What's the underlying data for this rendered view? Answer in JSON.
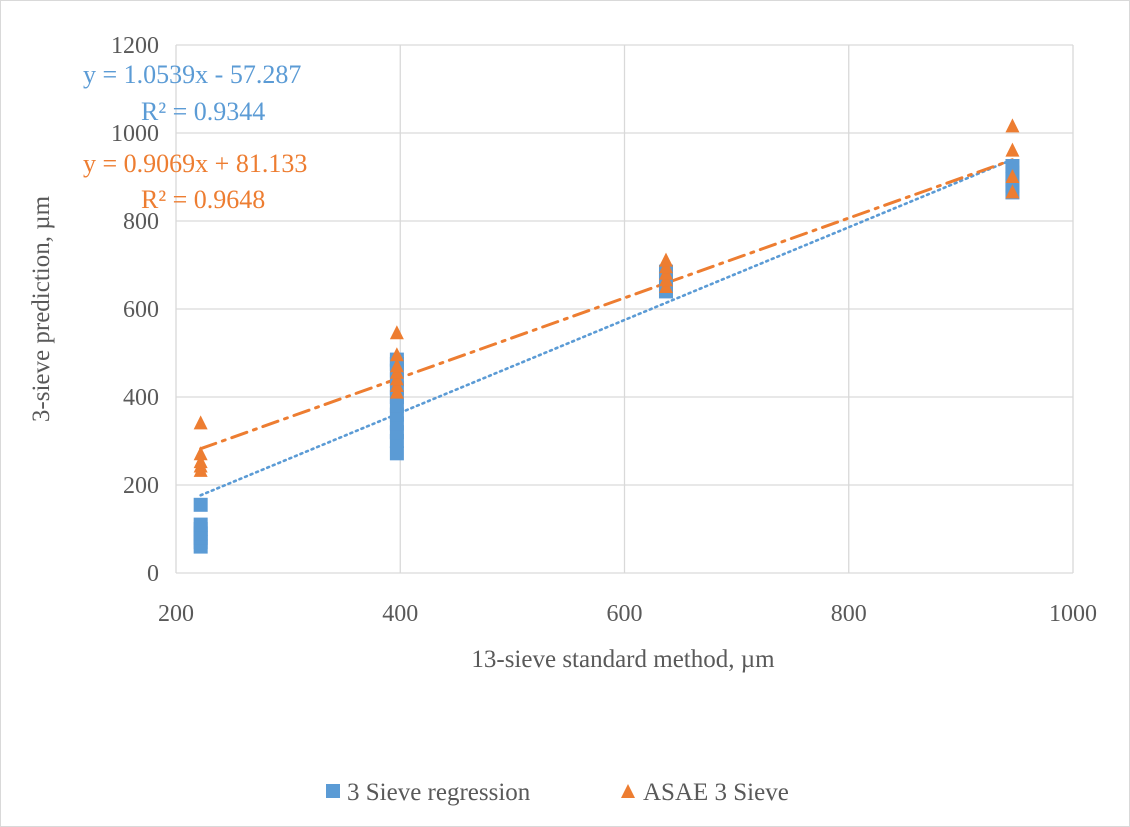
{
  "chart_data": {
    "type": "scatter",
    "title": "",
    "xlabel": "13-sieve standard method, µm",
    "ylabel": "3-sieve prediction, µm",
    "xlim": [
      200,
      1000
    ],
    "ylim": [
      0,
      1200
    ],
    "xticks": [
      "200",
      "400",
      "600",
      "800",
      "1000"
    ],
    "yticks": [
      "0",
      "200",
      "400",
      "600",
      "800",
      "1000",
      "1200"
    ],
    "grid": true,
    "legend_position": "bottom",
    "series": [
      {
        "name": "3 Sieve regression",
        "marker": "square",
        "color": "#5b9bd5",
        "points": [
          [
            222,
            60
          ],
          [
            222,
            70
          ],
          [
            222,
            80
          ],
          [
            222,
            90
          ],
          [
            222,
            100
          ],
          [
            222,
            110
          ],
          [
            222,
            155
          ],
          [
            397,
            272
          ],
          [
            397,
            300
          ],
          [
            397,
            320
          ],
          [
            397,
            340
          ],
          [
            397,
            360
          ],
          [
            397,
            380
          ],
          [
            397,
            400
          ],
          [
            397,
            420
          ],
          [
            397,
            440
          ],
          [
            397,
            460
          ],
          [
            397,
            475
          ],
          [
            397,
            485
          ],
          [
            637,
            640
          ],
          [
            637,
            655
          ],
          [
            637,
            670
          ],
          [
            637,
            685
          ],
          [
            946,
            865
          ],
          [
            946,
            880
          ],
          [
            946,
            895
          ],
          [
            946,
            910
          ],
          [
            946,
            925
          ]
        ],
        "trendline": {
          "label": "y = 1.0539x - 57.287",
          "r2": "R² = 0.9344",
          "slope": 1.0539,
          "intercept": -57.287,
          "style": "dotted"
        }
      },
      {
        "name": "ASAE 3 Sieve",
        "marker": "triangle",
        "color": "#ed7d31",
        "points": [
          [
            222,
            232
          ],
          [
            222,
            242
          ],
          [
            222,
            252
          ],
          [
            222,
            270
          ],
          [
            222,
            340
          ],
          [
            397,
            410
          ],
          [
            397,
            425
          ],
          [
            397,
            440
          ],
          [
            397,
            455
          ],
          [
            397,
            470
          ],
          [
            397,
            495
          ],
          [
            397,
            545
          ],
          [
            637,
            650
          ],
          [
            637,
            665
          ],
          [
            637,
            680
          ],
          [
            637,
            695
          ],
          [
            637,
            710
          ],
          [
            946,
            865
          ],
          [
            946,
            900
          ],
          [
            946,
            960
          ],
          [
            946,
            1015
          ]
        ],
        "trendline": {
          "label": "y = 0.9069x + 81.133",
          "r2": "R² = 0.9648",
          "slope": 0.9069,
          "intercept": 81.133,
          "style": "dash-dot"
        }
      }
    ]
  }
}
